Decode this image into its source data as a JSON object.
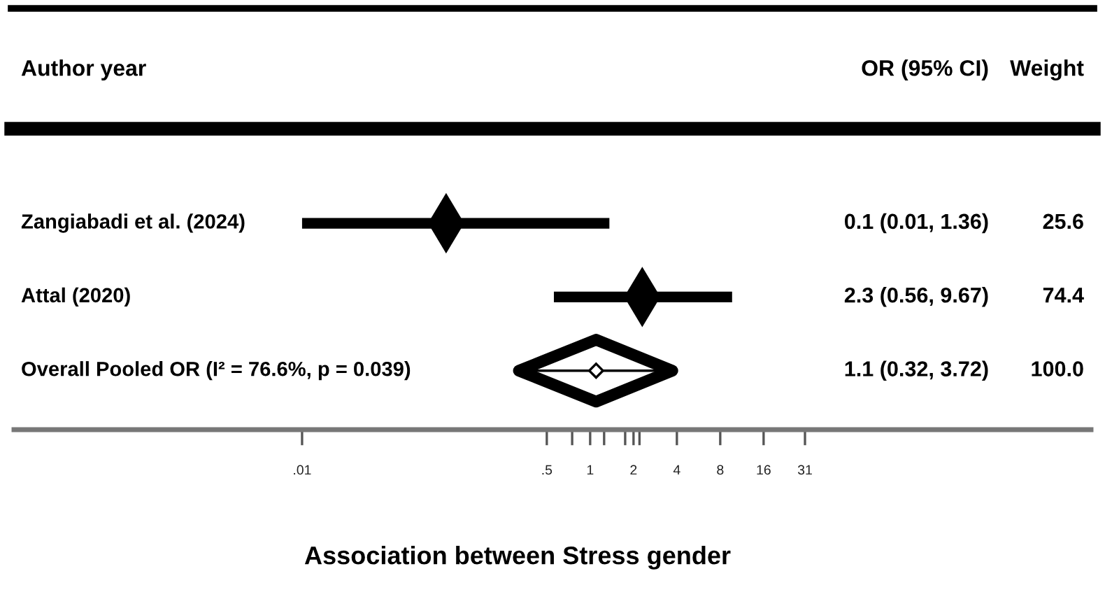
{
  "chart_data": {
    "type": "scatter",
    "orientation": "horizontal",
    "log": "x",
    "categories": [
      "Zangiabadi et al. (2024)",
      "Attal (2020)",
      "Overall Pooled OR (I² = 76.6%, p = 0.039)"
    ],
    "series": [
      {
        "marker": "diamond",
        "color": "#000000",
        "values": [
          0.1,
          2.3,
          null
        ],
        "errors": [
          [
            0.01,
            1.36
          ],
          [
            0.56,
            9.67
          ],
          null
        ]
      },
      {
        "type": "scatter",
        "color": "#000000",
        "values": [
          null,
          null,
          1.1
        ],
        "errors": [
          null,
          null,
          [
            0.32,
            3.72
          ]
        ]
      }
    ],
    "xlabel": "Association between Stress gender",
    "xlim": [
      0.0001,
      3000
    ],
    "xticks": [
      {
        "value": 0.01,
        "label": ".01"
      },
      {
        "value": 0.5,
        "label": ".5"
      },
      {
        "value": 0.75,
        "label": null
      },
      1,
      {
        "value": 1.25,
        "label": null
      },
      {
        "value": 1.75,
        "label": null
      },
      2,
      {
        "value": 2.2,
        "label": null
      },
      4,
      8,
      16,
      31
    ],
    "annotations": [
      "Author year",
      "OR (95% CI)",
      "Weight",
      "0.1 (0.01, 1.36)",
      "2.3 (0.56, 9.67)",
      "1.1 (0.32, 3.72)",
      "25.6",
      "74.4",
      "100.0"
    ]
  }
}
